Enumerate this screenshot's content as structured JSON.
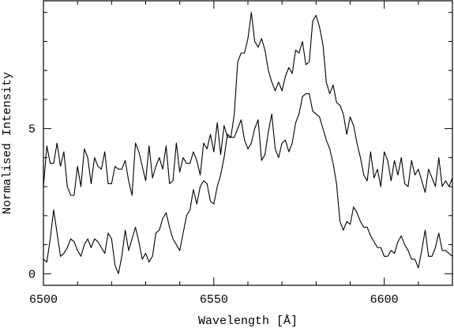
{
  "chart_data": {
    "type": "line",
    "xlabel": "Wavelength [Å]",
    "ylabel": "Normalised Intensity",
    "xlim": [
      6500,
      6620
    ],
    "ylim": [
      -0.4,
      9.4
    ],
    "x_ticks": [
      6500,
      6550,
      6600
    ],
    "x_tick_labels": [
      "6500",
      "6550",
      "6600"
    ],
    "y_ticks": [
      0,
      5
    ],
    "y_tick_labels": [
      "0",
      "5"
    ],
    "x_minor_step": 10,
    "y_minor_step": 1,
    "grid": false,
    "series": [
      {
        "x": [
          6500,
          6501,
          6502,
          6503,
          6504,
          6505,
          6506,
          6507,
          6508,
          6509,
          6510,
          6511,
          6512,
          6513,
          6514,
          6515,
          6516,
          6517,
          6518,
          6519,
          6520,
          6521,
          6522,
          6523,
          6524,
          6525,
          6526,
          6527,
          6528,
          6529,
          6530,
          6531,
          6532,
          6533,
          6534,
          6535,
          6536,
          6537,
          6538,
          6539,
          6540,
          6541,
          6542,
          6543,
          6544,
          6545,
          6546,
          6547,
          6548,
          6549,
          6550,
          6551,
          6552,
          6553,
          6554,
          6555,
          6556,
          6557,
          6558,
          6559,
          6560,
          6561,
          6562,
          6563,
          6564,
          6565,
          6566,
          6567,
          6568,
          6569,
          6570,
          6571,
          6572,
          6573,
          6574,
          6575,
          6576,
          6577,
          6578,
          6579,
          6580,
          6581,
          6582,
          6583,
          6584,
          6585,
          6586,
          6587,
          6588,
          6589,
          6590,
          6591,
          6592,
          6593,
          6594,
          6595,
          6596,
          6597,
          6598,
          6599,
          6600,
          6601,
          6602,
          6603,
          6604,
          6605,
          6606,
          6607,
          6608,
          6609,
          6610,
          6611,
          6612,
          6613,
          6614,
          6615,
          6616,
          6617,
          6618,
          6619,
          6620
        ],
        "values": [
          3.0,
          4.4,
          3.8,
          3.8,
          4.5,
          3.7,
          4.2,
          3.0,
          2.7,
          2.7,
          3.7,
          3.0,
          4.3,
          4.0,
          3.1,
          4.0,
          3.7,
          3.6,
          4.2,
          3.1,
          3.1,
          3.7,
          3.6,
          3.6,
          3.9,
          3.2,
          2.7,
          4.5,
          4.2,
          3.7,
          3.2,
          4.4,
          3.3,
          3.7,
          4.0,
          3.6,
          4.4,
          3.1,
          3.2,
          4.5,
          3.5,
          4.0,
          3.8,
          3.8,
          4.2,
          3.9,
          3.4,
          4.5,
          4.3,
          4.8,
          4.2,
          5.2,
          4.1,
          5.1,
          4.7,
          4.7,
          5.5,
          7.3,
          7.6,
          7.6,
          8.1,
          9.0,
          8.0,
          7.8,
          8.1,
          7.7,
          7.0,
          6.6,
          6.3,
          6.6,
          6.3,
          6.8,
          7.1,
          6.9,
          7.7,
          7.6,
          8.0,
          7.2,
          7.3,
          8.7,
          8.9,
          8.5,
          7.9,
          6.6,
          6.2,
          6.5,
          5.9,
          5.8,
          5.5,
          4.8,
          5.4,
          5.1,
          4.5,
          4.0,
          3.4,
          3.2,
          4.2,
          3.3,
          3.6,
          3.0,
          4.2,
          3.9,
          3.2,
          3.9,
          3.4,
          4.0,
          3.1,
          3.0,
          3.9,
          3.4,
          3.6,
          3.2,
          2.8,
          3.6,
          3.3,
          3.0,
          4.0,
          3.0,
          3.2,
          3.0,
          3.3
        ]
      },
      {
        "x": [
          6500,
          6501,
          6502,
          6503,
          6504,
          6505,
          6506,
          6507,
          6508,
          6509,
          6510,
          6511,
          6512,
          6513,
          6514,
          6515,
          6516,
          6517,
          6518,
          6519,
          6520,
          6521,
          6522,
          6523,
          6524,
          6525,
          6526,
          6527,
          6528,
          6529,
          6530,
          6531,
          6532,
          6533,
          6534,
          6535,
          6536,
          6537,
          6538,
          6539,
          6540,
          6541,
          6542,
          6543,
          6544,
          6545,
          6546,
          6547,
          6548,
          6549,
          6550,
          6551,
          6552,
          6553,
          6554,
          6555,
          6556,
          6557,
          6558,
          6559,
          6560,
          6561,
          6562,
          6563,
          6564,
          6565,
          6566,
          6567,
          6568,
          6569,
          6570,
          6571,
          6572,
          6573,
          6574,
          6575,
          6576,
          6577,
          6578,
          6579,
          6580,
          6581,
          6582,
          6583,
          6584,
          6585,
          6586,
          6587,
          6588,
          6589,
          6590,
          6591,
          6592,
          6593,
          6594,
          6595,
          6596,
          6597,
          6598,
          6599,
          6600,
          6601,
          6602,
          6603,
          6604,
          6605,
          6606,
          6607,
          6608,
          6609,
          6610,
          6611,
          6612,
          6613,
          6614,
          6615,
          6616,
          6617,
          6618,
          6619,
          6620
        ],
        "values": [
          0.5,
          0.4,
          1.2,
          2.2,
          1.4,
          0.6,
          0.7,
          0.9,
          1.2,
          1.1,
          0.8,
          0.6,
          1.0,
          1.2,
          0.9,
          1.2,
          1.1,
          0.9,
          0.7,
          1.4,
          1.2,
          0.3,
          0.0,
          0.6,
          1.5,
          0.8,
          1.2,
          1.6,
          1.1,
          0.5,
          0.7,
          0.4,
          0.6,
          1.4,
          1.5,
          1.9,
          2.1,
          1.6,
          1.2,
          1.0,
          0.8,
          1.4,
          2.0,
          2.2,
          2.9,
          2.4,
          3.0,
          3.2,
          3.1,
          2.5,
          2.4,
          3.0,
          3.4,
          4.0,
          4.8,
          4.7,
          4.7,
          5.0,
          5.3,
          4.6,
          4.3,
          4.5,
          5.0,
          5.3,
          3.9,
          4.1,
          4.9,
          5.5,
          4.3,
          4.0,
          4.5,
          4.6,
          4.2,
          4.5,
          5.2,
          5.5,
          6.1,
          6.2,
          6.2,
          5.6,
          5.5,
          5.4,
          5.0,
          4.6,
          4.3,
          3.8,
          3.1,
          1.8,
          1.5,
          1.8,
          1.7,
          2.3,
          2.1,
          1.8,
          1.6,
          1.6,
          1.3,
          1.1,
          0.9,
          0.9,
          0.6,
          0.6,
          0.8,
          0.7,
          1.1,
          1.3,
          1.0,
          0.8,
          0.5,
          0.5,
          0.2,
          0.8,
          1.5,
          0.6,
          0.6,
          0.9,
          1.4,
          0.8,
          0.8,
          0.7,
          0.6
        ]
      }
    ]
  }
}
